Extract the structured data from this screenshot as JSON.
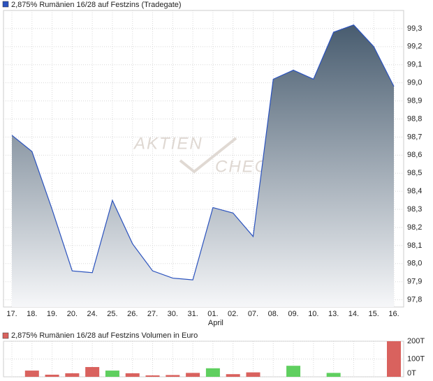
{
  "chart_data": [
    {
      "type": "area",
      "legend": "2,875% Rumänien 16/28 auf Festzins (Tradegate)",
      "watermark": [
        "AKTIEN",
        "CHECK"
      ],
      "categories": [
        "17.",
        "18.",
        "19.",
        "20.",
        "24.",
        "25.",
        "26.",
        "27.",
        "30.",
        "31.",
        "01.",
        "02.",
        "07.",
        "08.",
        "09.",
        "10.",
        "13.",
        "14.",
        "15.",
        "16."
      ],
      "month_labels": [
        null,
        null,
        null,
        null,
        null,
        null,
        null,
        null,
        null,
        null,
        "April",
        null,
        null,
        null,
        null,
        null,
        null,
        null,
        null,
        null
      ],
      "series": [
        {
          "name": "2,875% Rumänien 16/28 auf Festzins (Tradegate)",
          "color": "#2a52be",
          "values": [
            98.71,
            98.62,
            98.3,
            97.96,
            97.95,
            98.35,
            98.11,
            97.96,
            97.92,
            97.91,
            98.31,
            98.28,
            98.15,
            99.02,
            99.07,
            99.02,
            99.28,
            99.32,
            99.2,
            98.98
          ]
        }
      ],
      "fill_top": "#3f5468",
      "fill_bottom": "#f6f7f9",
      "ylim": [
        97.76,
        99.4
      ],
      "yticks": [
        {
          "value": 97.8,
          "label": "97,8"
        },
        {
          "value": 97.9,
          "label": "97,9"
        },
        {
          "value": 98.0,
          "label": "98,0"
        },
        {
          "value": 98.1,
          "label": "98,1"
        },
        {
          "value": 98.2,
          "label": "98,2"
        },
        {
          "value": 98.3,
          "label": "98,3"
        },
        {
          "value": 98.4,
          "label": "98,4"
        },
        {
          "value": 98.5,
          "label": "98,5"
        },
        {
          "value": 98.6,
          "label": "98,6"
        },
        {
          "value": 98.7,
          "label": "98,7"
        },
        {
          "value": 98.8,
          "label": "98,8"
        },
        {
          "value": 98.9,
          "label": "98,9"
        },
        {
          "value": 99.0,
          "label": "99,0"
        },
        {
          "value": 99.1,
          "label": "99,1"
        },
        {
          "value": 99.2,
          "label": "99,2"
        },
        {
          "value": 99.3,
          "label": "99,3"
        }
      ],
      "grid": true
    },
    {
      "type": "bar",
      "legend": "2,875% Rumänien 16/28 auf Festzins Volumen in Euro",
      "legend_color": "#d9625e",
      "values": [
        0,
        35,
        12,
        20,
        55,
        35,
        20,
        8,
        10,
        22,
        48,
        15,
        25,
        0,
        62,
        0,
        22,
        0,
        0,
        200
      ],
      "colors": [
        "#d9625e",
        "#d9625e",
        "#d9625e",
        "#d9625e",
        "#d9625e",
        "#5fcf5f",
        "#d9625e",
        "#d9625e",
        "#d9625e",
        "#d9625e",
        "#5fcf5f",
        "#d9625e",
        "#d9625e",
        "#d9625e",
        "#5fcf5f",
        "#d9625e",
        "#5fcf5f",
        "#d9625e",
        "#d9625e",
        "#d9625e"
      ],
      "ylim": [
        0,
        200
      ],
      "yticks": [
        {
          "value": 0,
          "label": "0T"
        },
        {
          "value": 100,
          "label": "100T"
        },
        {
          "value": 200,
          "label": "200T"
        }
      ],
      "grid": true
    }
  ]
}
